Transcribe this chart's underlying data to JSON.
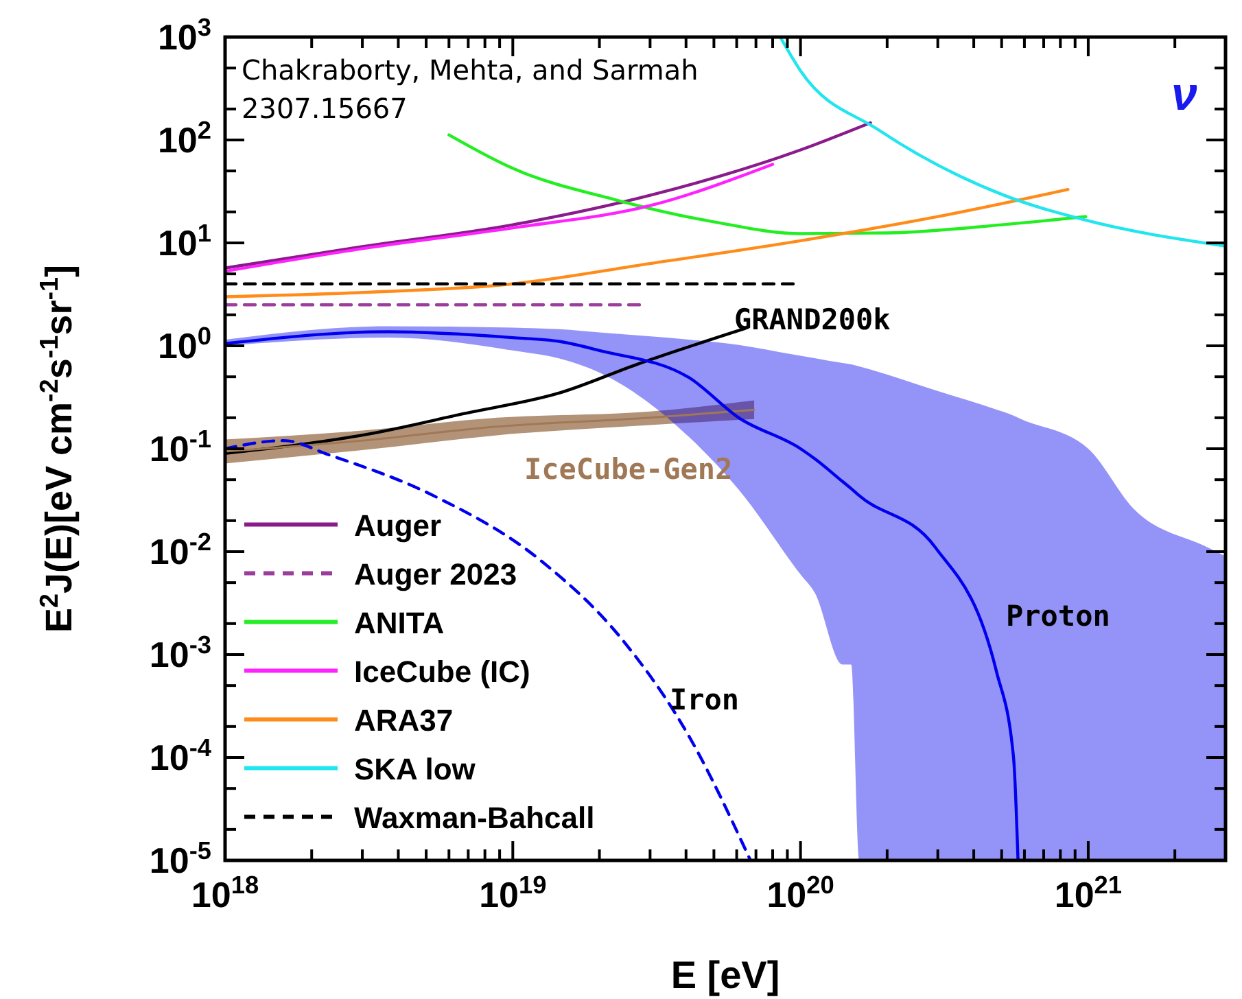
{
  "chart_data": {
    "type": "line",
    "xlabel": "E [eV]",
    "ylabel": "E$^{2}$J(E)[eV cm$^{-2}$s$^{-1}$sr$^{-1}$]",
    "log": "xy",
    "xlim": [
      1e+18,
      3e+21
    ],
    "ylim": [
      1e-05,
      1000
    ],
    "xticks": [
      {
        "value": 1e+18,
        "label": "10$^{18}$"
      },
      {
        "value": 2e+18,
        "label": null
      },
      {
        "value": 3e+18,
        "label": null
      },
      {
        "value": 4e+18,
        "label": null
      },
      {
        "value": 5e+18,
        "label": null
      },
      {
        "value": 6e+18,
        "label": null
      },
      {
        "value": 7e+18,
        "label": null
      },
      {
        "value": 8e+18,
        "label": null
      },
      {
        "value": 9e+18,
        "label": null
      },
      {
        "value": 1e+19,
        "label": "10$^{19}$"
      },
      {
        "value": 2e+19,
        "label": null
      },
      {
        "value": 3e+19,
        "label": null
      },
      {
        "value": 4e+19,
        "label": null
      },
      {
        "value": 5e+19,
        "label": null
      },
      {
        "value": 6e+19,
        "label": null
      },
      {
        "value": 7e+19,
        "label": null
      },
      {
        "value": 8e+19,
        "label": null
      },
      {
        "value": 9e+19,
        "label": null
      },
      {
        "value": 1e+20,
        "label": "10$^{20}$"
      },
      {
        "value": 2e+20,
        "label": null
      },
      {
        "value": 3e+20,
        "label": null
      },
      {
        "value": 4e+20,
        "label": null
      },
      {
        "value": 5e+20,
        "label": null
      },
      {
        "value": 6e+20,
        "label": null
      },
      {
        "value": 7e+20,
        "label": null
      },
      {
        "value": 8e+20,
        "label": null
      },
      {
        "value": 9e+20,
        "label": null
      },
      {
        "value": 1e+21,
        "label": "10$^{21}$"
      },
      {
        "value": 2e+21,
        "label": null
      }
    ],
    "yticks": [
      {
        "value": 1e-05,
        "label": "10$^{-5}$"
      },
      {
        "value": 2e-05,
        "label": null
      },
      {
        "value": 5e-05,
        "label": null
      },
      {
        "value": 0.0001,
        "label": "10$^{-4}$"
      },
      {
        "value": 0.0002,
        "label": null
      },
      {
        "value": 0.0005,
        "label": null
      },
      {
        "value": 0.001,
        "label": "10$^{-3}$"
      },
      {
        "value": 0.002,
        "label": null
      },
      {
        "value": 0.005,
        "label": null
      },
      {
        "value": 0.01,
        "label": "10$^{-2}$"
      },
      {
        "value": 0.02,
        "label": null
      },
      {
        "value": 0.05,
        "label": null
      },
      {
        "value": 0.1,
        "label": "10$^{-1}$"
      },
      {
        "value": 0.2,
        "label": null
      },
      {
        "value": 0.5,
        "label": null
      },
      {
        "value": 1,
        "label": "10$^{0}$"
      },
      {
        "value": 2,
        "label": null
      },
      {
        "value": 5,
        "label": null
      },
      {
        "value": 10,
        "label": "10$^{1}$"
      },
      {
        "value": 20,
        "label": null
      },
      {
        "value": 50,
        "label": null
      },
      {
        "value": 100,
        "label": "10$^{2}$"
      },
      {
        "value": 200,
        "label": null
      },
      {
        "value": 500,
        "label": null
      },
      {
        "value": 1000,
        "label": "10$^{3}$"
      }
    ],
    "legend": "bottom left",
    "series": [
      {
        "name": "Auger",
        "color": "#8b1a8b",
        "x": [
          1e+18,
          3e+18,
          1e+19,
          3e+19,
          1e+20,
          1.75e+20
        ],
        "values": [
          5.7,
          9.2,
          15,
          29,
          80,
          147
        ]
      },
      {
        "name": "Auger 2023",
        "line_style": "dashed",
        "color": "#9b3d9b",
        "x": [
          1e+18,
          2.9e+19
        ],
        "values": [
          2.5,
          2.5
        ]
      },
      {
        "name": "ANITA",
        "color": "#22ee22",
        "x": [
          6e+18,
          1e+19,
          2.3e+19,
          5e+19,
          1e+20,
          2e+20,
          5e+20,
          9.8e+20
        ],
        "values": [
          112,
          53,
          26,
          16,
          12.3,
          12.5,
          15,
          18
        ]
      },
      {
        "name": "IceCube (IC)",
        "color": "#ff22ff",
        "x": [
          1e+18,
          3e+18,
          1e+19,
          3e+19,
          8e+19
        ],
        "values": [
          5.3,
          8.8,
          14,
          23,
          58
        ]
      },
      {
        "name": "ARA37",
        "color": "#ff8c1a",
        "x": [
          1e+18,
          3e+18,
          1e+19,
          3e+19,
          1e+20,
          3e+20,
          8.5e+20
        ],
        "values": [
          3.0,
          3.3,
          4.0,
          6.3,
          10.5,
          18,
          33
        ]
      },
      {
        "name": "SKA low",
        "color": "#22e5ee",
        "x": [
          8.5e+19,
          1e+20,
          1.87e+20,
          5.1e+20,
          9.5e+20,
          3e+21
        ],
        "values": [
          1000,
          470,
          125,
          29,
          17,
          9.3
        ]
      },
      {
        "name": "Waxman-Bahcall",
        "line_style": "dashed",
        "color": "#000000",
        "x": [
          1e+18,
          1e+20
        ],
        "values": [
          4.0,
          4.0
        ]
      },
      {
        "color": "#000000",
        "x": [
          1e+18,
          3.2e+18,
          6.8e+18,
          1.46e+19,
          2.7e+19,
          6.4e+19
        ],
        "values": [
          0.09,
          0.14,
          0.22,
          0.35,
          0.66,
          1.47
        ]
      },
      {
        "color": "#a07856",
        "x": [
          1e+18,
          3e+18,
          8.8e+18,
          3e+19,
          6.9e+19
        ],
        "values": [
          0.094,
          0.12,
          0.164,
          0.2,
          0.239
        ],
        "lower": [
          0.072,
          0.097,
          0.135,
          0.17,
          0.194
        ],
        "upper": [
          0.123,
          0.15,
          0.2,
          0.23,
          0.295
        ]
      },
      {
        "color": "#0000ee",
        "x": [
          1e+18,
          3.7e+18,
          1e+19,
          1.46e+19,
          2e+19,
          4.1e+19,
          6.1e+19,
          1e+20,
          1.12e+20,
          1.4e+20,
          1.5e+20,
          1.6e+20,
          2.94e+20,
          4.8e+20,
          5.5e+20,
          5.7e+20,
          1e+21,
          1.44e+21,
          2.6e+21,
          3e+21
        ],
        "values": [
          1.05,
          1.37,
          1.2,
          1.1,
          0.9,
          0.49,
          0.2,
          0.1,
          0.08,
          0.048,
          0.041,
          0.035,
          0.011,
          0.00068,
          0.0001,
          1e-05,
          null,
          null,
          null,
          null
        ],
        "lower": [
          1.0,
          1.2,
          0.9,
          0.75,
          0.55,
          0.13,
          0.04,
          0.006,
          0.004,
          0.0008,
          0.0008,
          1e-05,
          1e-05,
          1e-05,
          1e-05,
          1e-05,
          1e-05,
          1e-05,
          1e-05,
          1e-05
        ],
        "upper": [
          1.15,
          1.55,
          1.5,
          1.45,
          1.35,
          1.15,
          1.02,
          0.8,
          0.76,
          0.68,
          0.66,
          0.63,
          0.37,
          0.24,
          0.21,
          0.2,
          0.1,
          0.026,
          0.011,
          0.009
        ]
      },
      {
        "line_style": "dashed",
        "color": "#0000ee",
        "x": [
          1e+18,
          1.6e+18,
          2.3e+18,
          5.3e+18,
          1.25e+19,
          2.4e+19,
          4.1e+19,
          6.7e+19
        ],
        "values": [
          0.1,
          0.12,
          0.087,
          0.035,
          0.0082,
          0.0014,
          0.00016,
          1e-05
        ]
      }
    ],
    "annotations": [
      "Chakraborty, Mehta, and Sarmah",
      "2307.15667",
      "ν",
      "GRAND200k",
      "IceCube-Gen2",
      "Proton",
      "Iron"
    ]
  }
}
